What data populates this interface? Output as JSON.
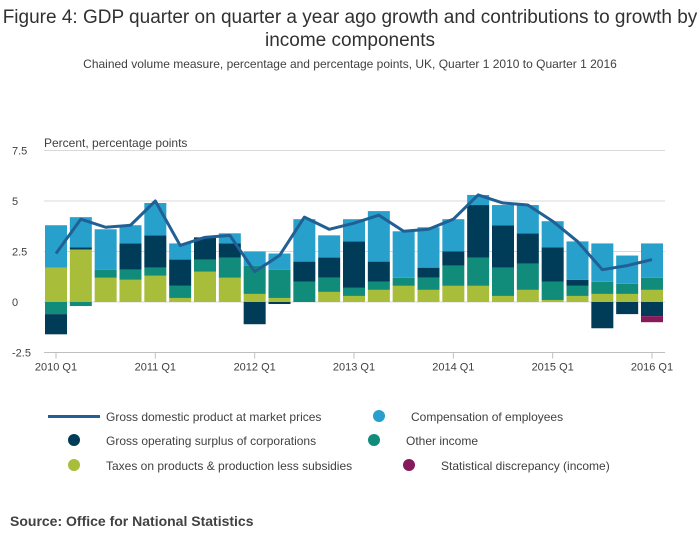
{
  "title": "Figure 4: GDP quarter on quarter a year ago growth and contributions to growth by income components",
  "subtitle": "Chained volume measure, percentage and percentage points, UK, Quarter 1 2010 to Quarter 1 2016",
  "source": "Source: Office for National Statistics",
  "chart_data": {
    "type": "bar",
    "stacked": true,
    "title": "Figure 4: GDP quarter on quarter a year ago growth and contributions to growth by income components",
    "ylabel": "Percent, percentage points",
    "xlabel": "",
    "ylim": [
      -2.5,
      7.5
    ],
    "yticks": [
      -2.5,
      0,
      2.5,
      5,
      7.5
    ],
    "ytick_labels": [
      "-2.5",
      "0",
      "2.5",
      "5",
      "7.5"
    ],
    "categories": [
      "2010 Q1",
      "2010 Q2",
      "2010 Q3",
      "2010 Q4",
      "2011 Q1",
      "2011 Q2",
      "2011 Q3",
      "2011 Q4",
      "2012 Q1",
      "2012 Q2",
      "2012 Q3",
      "2012 Q4",
      "2013 Q1",
      "2013 Q2",
      "2013 Q3",
      "2013 Q4",
      "2014 Q1",
      "2014 Q2",
      "2014 Q3",
      "2014 Q4",
      "2015 Q1",
      "2015 Q2",
      "2015 Q3",
      "2015 Q4",
      "2016 Q1"
    ],
    "xtick_labels": [
      {
        "index": 0,
        "label": "2010 Q1"
      },
      {
        "index": 4,
        "label": "2011 Q1"
      },
      {
        "index": 8,
        "label": "2012 Q1"
      },
      {
        "index": 12,
        "label": "2013 Q1"
      },
      {
        "index": 16,
        "label": "2014 Q1"
      },
      {
        "index": 20,
        "label": "2015 Q1"
      },
      {
        "index": 24,
        "label": "2016 Q1"
      }
    ],
    "series": [
      {
        "name": "Taxes on products & production less subsidies",
        "color": "#a8bd3a",
        "kind": "bar",
        "values": [
          1.7,
          2.6,
          1.2,
          1.1,
          1.3,
          0.2,
          1.5,
          1.2,
          0.4,
          0.2,
          0.0,
          0.5,
          0.3,
          0.6,
          0.8,
          0.6,
          0.8,
          0.8,
          0.3,
          0.6,
          0.1,
          0.3,
          0.4,
          0.4,
          0.6
        ]
      },
      {
        "name": "Other income",
        "color": "#118c7b",
        "kind": "bar",
        "values": [
          -0.6,
          -0.2,
          0.4,
          0.5,
          0.4,
          0.6,
          0.6,
          1.0,
          1.4,
          1.4,
          1.0,
          0.7,
          0.4,
          0.4,
          0.4,
          0.6,
          1.0,
          1.4,
          1.4,
          1.3,
          0.9,
          0.5,
          0.6,
          0.5,
          0.6
        ]
      },
      {
        "name": "Gross operating surplus of corporations",
        "color": "#003c57",
        "kind": "bar",
        "values": [
          -1.0,
          0.1,
          0.0,
          1.3,
          1.6,
          1.3,
          1.1,
          0.7,
          -1.1,
          -0.1,
          1.0,
          1.0,
          2.3,
          1.0,
          0.0,
          0.5,
          0.7,
          2.6,
          2.1,
          1.5,
          1.7,
          0.3,
          -1.3,
          -0.6,
          -0.7
        ]
      },
      {
        "name": "Compensation of employees",
        "color": "#27a0cc",
        "kind": "bar",
        "values": [
          2.1,
          1.5,
          2.0,
          0.9,
          1.6,
          0.8,
          0.0,
          0.5,
          0.7,
          0.8,
          2.1,
          1.1,
          1.1,
          2.5,
          2.3,
          2.0,
          1.6,
          0.5,
          1.0,
          1.4,
          1.3,
          1.9,
          1.9,
          1.4,
          1.7
        ]
      },
      {
        "name": "Statistical discrepancy (income)",
        "color": "#871a5b",
        "kind": "bar",
        "values": [
          0,
          0,
          0,
          0,
          0,
          0,
          0,
          0,
          0,
          0,
          0,
          0,
          0,
          0,
          0,
          0,
          0,
          0,
          0,
          0,
          0,
          0,
          0,
          0,
          -0.3
        ]
      },
      {
        "name": "Gross domestic product at market prices",
        "color": "#206095",
        "kind": "line",
        "values": [
          2.4,
          4.1,
          3.7,
          3.8,
          5.0,
          2.8,
          3.2,
          3.3,
          1.5,
          2.3,
          4.2,
          3.6,
          3.9,
          4.3,
          3.5,
          3.6,
          4.1,
          5.3,
          4.9,
          4.8,
          4.0,
          3.0,
          1.6,
          1.8,
          2.1
        ]
      }
    ],
    "legend": {
      "placement": "bottom",
      "items": [
        {
          "label": "Gross domestic product at market prices",
          "symbol": "line",
          "color": "#206095"
        },
        {
          "label": "Compensation of employees",
          "symbol": "dot",
          "color": "#27a0cc"
        },
        {
          "label": "Gross operating surplus of corporations",
          "symbol": "dot",
          "color": "#003c57"
        },
        {
          "label": "Other income",
          "symbol": "dot",
          "color": "#118c7b"
        },
        {
          "label": "Taxes on products & production less subsidies",
          "symbol": "dot",
          "color": "#a8bd3a"
        },
        {
          "label": "Statistical discrepancy (income)",
          "symbol": "dot",
          "color": "#871a5b"
        }
      ]
    },
    "grid": true
  }
}
